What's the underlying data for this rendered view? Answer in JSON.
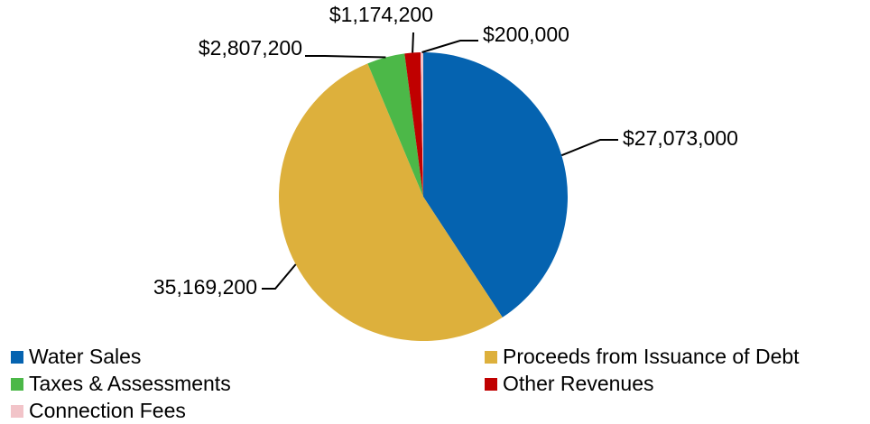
{
  "chart_data": {
    "type": "pie",
    "categories": [
      "Water Sales",
      "Proceeds from Issuance of Debt",
      "Taxes & Assessments",
      "Other Revenues",
      "Connection Fees"
    ],
    "values": [
      27073000,
      35169200,
      2807200,
      1174200,
      200000
    ],
    "value_labels": [
      "$27,073,000",
      "35,169,200",
      "$2,807,200",
      "$1,174,200",
      "$200,000"
    ],
    "colors": [
      "#0563b0",
      "#ddb03c",
      "#4cb848",
      "#c00000",
      "#f2c4c9"
    ]
  }
}
